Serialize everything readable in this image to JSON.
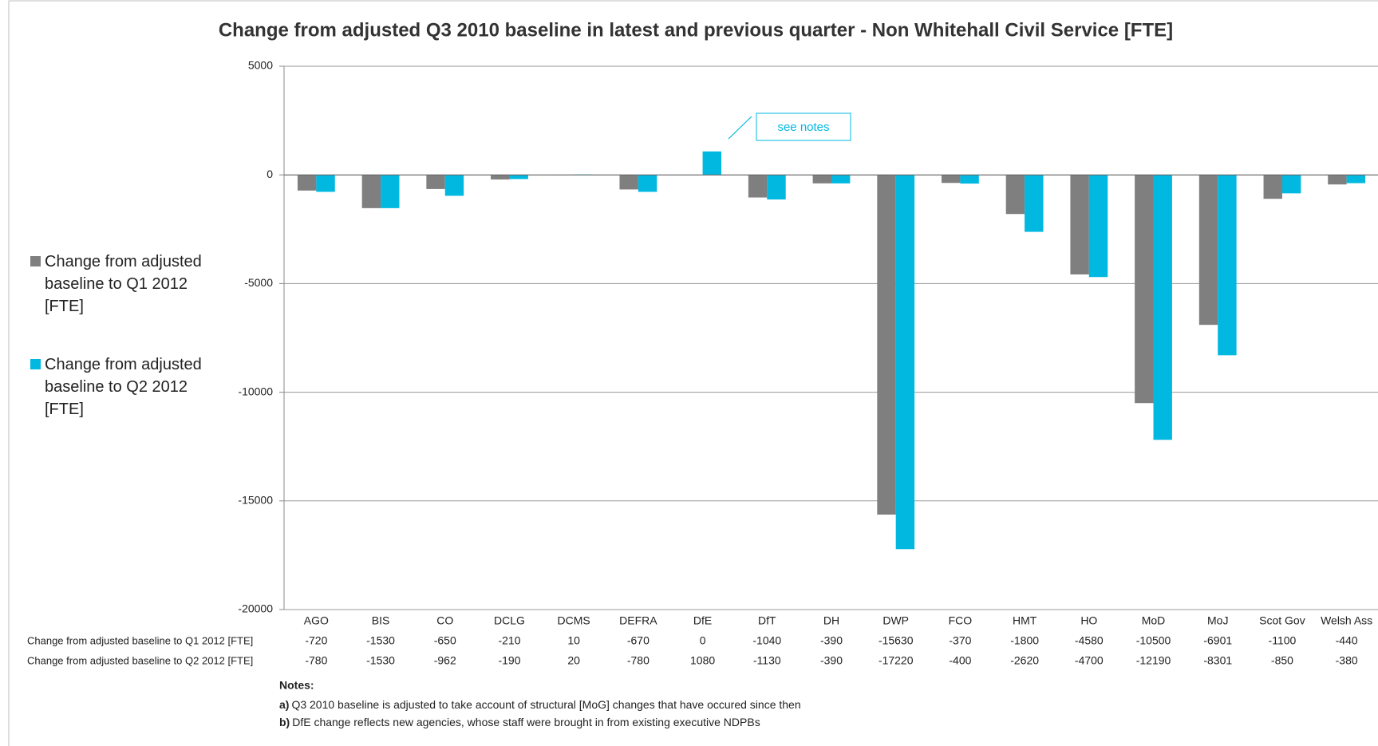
{
  "chart_data": {
    "type": "bar",
    "title": "Change from adjusted Q3 2010 baseline in latest and previous quarter - Non Whitehall Civil Service [FTE]",
    "categories": [
      "AGO",
      "BIS",
      "CO",
      "DCLG",
      "DCMS",
      "DEFRA",
      "DfE",
      "DfT",
      "DH",
      "DWP",
      "FCO",
      "HMT",
      "HO",
      "MoD",
      "MoJ",
      "Scot Gov",
      "Welsh Ass"
    ],
    "series": [
      {
        "name": "Change from adjusted baseline to Q1 2012 [FTE]",
        "color": "#7f7f7f",
        "values": [
          -720,
          -1530,
          -650,
          -210,
          10,
          -670,
          0,
          -1040,
          -390,
          -15630,
          -370,
          -1800,
          -4580,
          -10500,
          -6901,
          -1100,
          -440
        ]
      },
      {
        "name": "Change from adjusted baseline to Q2 2012 [FTE]",
        "color": "#00b8e0",
        "values": [
          -780,
          -1530,
          -962,
          -190,
          20,
          -780,
          1080,
          -1130,
          -390,
          -17220,
          -400,
          -2620,
          -4700,
          -12190,
          -8301,
          -850,
          -380
        ]
      }
    ],
    "ylim": [
      -20000,
      5000
    ],
    "yticks": [
      -20000,
      -15000,
      -10000,
      -5000,
      0,
      5000
    ],
    "grid": true,
    "legend": "left",
    "annotation": "see notes",
    "notes": {
      "title": "Notes:",
      "items": [
        {
          "marker": "a)",
          "text": "Q3 2010 baseline is adjusted to take account of structural [MoG] changes that have occured since then"
        },
        {
          "marker": "b)",
          "text": "DfE change reflects new agencies, whose staff were brought in from existing executive NDPBs"
        }
      ]
    }
  }
}
